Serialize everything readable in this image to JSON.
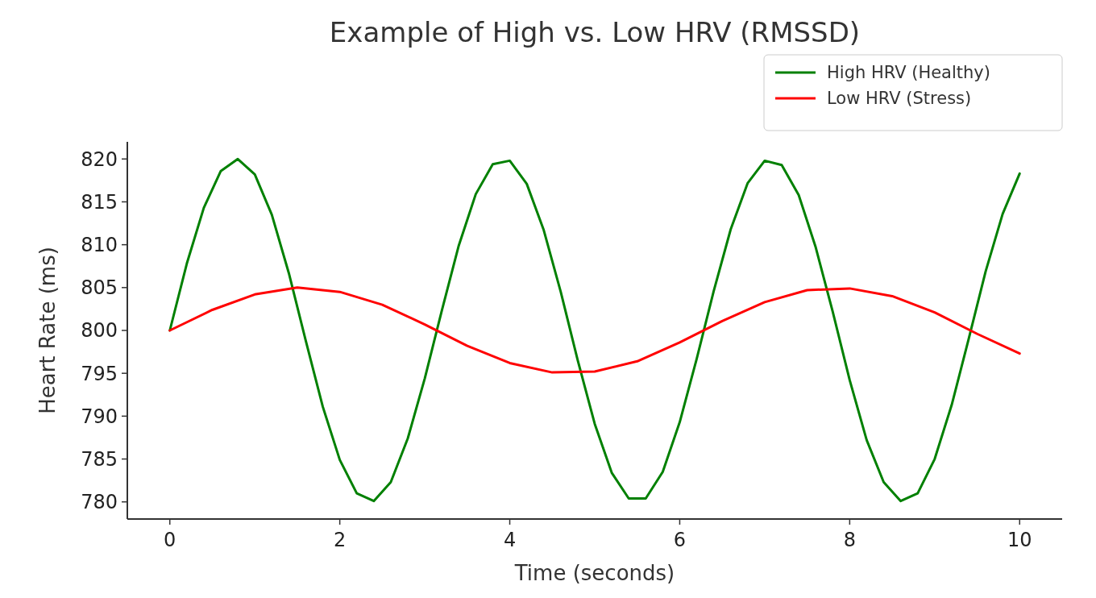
{
  "chart_data": {
    "type": "line",
    "title": "Example of High vs. Low HRV (RMSSD)",
    "xlabel": "Time (seconds)",
    "ylabel": "Heart Rate (ms)",
    "xlim": [
      -0.5,
      10.5
    ],
    "xticks": [
      0,
      2,
      4,
      6,
      8,
      10
    ],
    "ylim": [
      778,
      822
    ],
    "yticks": [
      780,
      785,
      790,
      795,
      800,
      805,
      810,
      815,
      820
    ],
    "grid": false,
    "legend": "top right",
    "marker": "none",
    "line_style": "solid",
    "series": [
      {
        "name": "High HRV (Healthy)",
        "color": "#008000",
        "x": [
          0,
          0.2,
          0.4,
          0.6,
          0.8,
          1,
          1.2,
          1.4,
          1.6,
          1.8,
          2,
          2.2,
          2.4,
          2.6,
          2.8,
          3,
          3.2,
          3.4,
          3.6,
          3.8,
          4,
          4.2,
          4.4,
          4.6,
          4.8,
          5,
          5.2,
          5.4,
          5.6,
          5.8,
          6,
          6.2,
          6.4,
          6.6,
          6.8,
          7,
          7.2,
          7.4,
          7.6,
          7.8,
          8,
          8.2,
          8.4,
          8.6,
          8.8,
          9,
          9.2,
          9.4,
          9.6,
          9.8,
          10
        ],
        "values": [
          800,
          807.8,
          814.3,
          818.6,
          820,
          818.2,
          813.5,
          806.7,
          798.8,
          791.1,
          784.9,
          781,
          780.1,
          782.3,
          787.4,
          794.4,
          802.3,
          809.9,
          815.9,
          819.4,
          819.8,
          817.1,
          811.7,
          804.5,
          796.5,
          789.1,
          783.4,
          780.4,
          780.4,
          783.5,
          789.3,
          796.7,
          804.6,
          811.8,
          817.2,
          819.8,
          819.3,
          815.8,
          809.7,
          802.2,
          794.2,
          787.2,
          782.3,
          780.1,
          781,
          785,
          791.3,
          799,
          806.9,
          813.6,
          818.3
        ]
      },
      {
        "name": "Low HRV (Stress)",
        "color": "#ff0000",
        "x": [
          0,
          0.5,
          1,
          1.5,
          2,
          2.5,
          3,
          3.5,
          4,
          4.5,
          5,
          5.5,
          6,
          6.5,
          7,
          7.5,
          8,
          8.5,
          9,
          9.5,
          10
        ],
        "values": [
          800,
          802.4,
          804.2,
          805,
          804.5,
          803,
          800.7,
          798.2,
          796.2,
          795.1,
          795.2,
          796.4,
          798.6,
          801.1,
          803.3,
          804.7,
          804.9,
          804,
          802.1,
          799.6,
          797.3
        ]
      }
    ]
  }
}
